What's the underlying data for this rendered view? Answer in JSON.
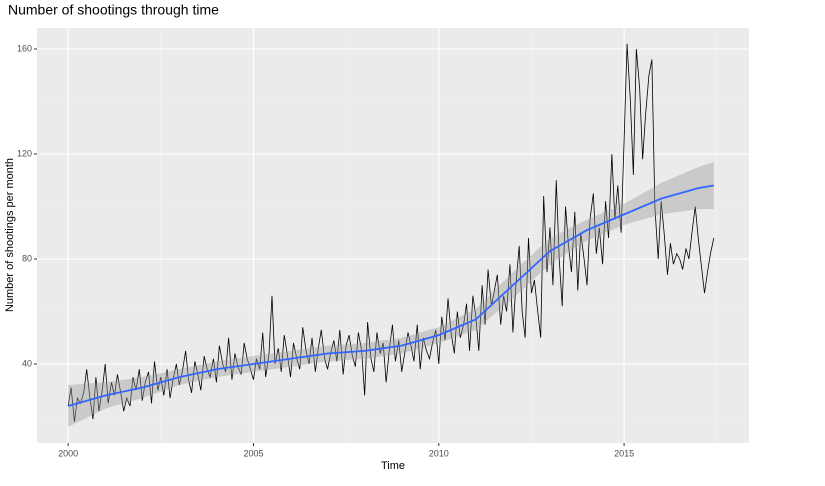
{
  "chart_data": {
    "type": "line",
    "title": "Number of shootings through time",
    "x_label": "Time",
    "y_label": "Number of shootings per month",
    "xlim": [
      1999.16,
      2018.37
    ],
    "ylim": [
      9.9,
      168
    ],
    "xticks": [
      2000,
      2005,
      2010,
      2015
    ],
    "yticks": [
      40,
      80,
      120,
      160
    ],
    "grid": true,
    "line_color": "#000000",
    "x": [
      2000.0,
      2000.08,
      2000.17,
      2000.25,
      2000.33,
      2000.42,
      2000.5,
      2000.58,
      2000.67,
      2000.75,
      2000.83,
      2000.92,
      2001.0,
      2001.08,
      2001.17,
      2001.25,
      2001.33,
      2001.42,
      2001.5,
      2001.58,
      2001.67,
      2001.75,
      2001.83,
      2001.92,
      2002.0,
      2002.08,
      2002.17,
      2002.25,
      2002.33,
      2002.42,
      2002.5,
      2002.58,
      2002.67,
      2002.75,
      2002.83,
      2002.92,
      2003.0,
      2003.08,
      2003.17,
      2003.25,
      2003.33,
      2003.42,
      2003.5,
      2003.58,
      2003.67,
      2003.75,
      2003.83,
      2003.92,
      2004.0,
      2004.08,
      2004.17,
      2004.25,
      2004.33,
      2004.42,
      2004.5,
      2004.58,
      2004.67,
      2004.75,
      2004.83,
      2004.92,
      2005.0,
      2005.08,
      2005.17,
      2005.25,
      2005.33,
      2005.42,
      2005.5,
      2005.58,
      2005.67,
      2005.75,
      2005.83,
      2005.92,
      2006.0,
      2006.08,
      2006.17,
      2006.25,
      2006.33,
      2006.42,
      2006.5,
      2006.58,
      2006.67,
      2006.75,
      2006.83,
      2006.92,
      2007.0,
      2007.08,
      2007.17,
      2007.25,
      2007.33,
      2007.42,
      2007.5,
      2007.58,
      2007.67,
      2007.75,
      2007.83,
      2007.92,
      2008.0,
      2008.08,
      2008.17,
      2008.25,
      2008.33,
      2008.42,
      2008.5,
      2008.58,
      2008.67,
      2008.75,
      2008.83,
      2008.92,
      2009.0,
      2009.08,
      2009.17,
      2009.25,
      2009.33,
      2009.42,
      2009.5,
      2009.58,
      2009.67,
      2009.75,
      2009.83,
      2009.92,
      2010.0,
      2010.08,
      2010.17,
      2010.25,
      2010.33,
      2010.42,
      2010.5,
      2010.58,
      2010.67,
      2010.75,
      2010.83,
      2010.92,
      2011.0,
      2011.08,
      2011.17,
      2011.25,
      2011.33,
      2011.42,
      2011.5,
      2011.58,
      2011.67,
      2011.75,
      2011.83,
      2011.92,
      2012.0,
      2012.08,
      2012.17,
      2012.25,
      2012.33,
      2012.42,
      2012.5,
      2012.58,
      2012.67,
      2012.75,
      2012.83,
      2012.92,
      2013.0,
      2013.08,
      2013.17,
      2013.25,
      2013.33,
      2013.42,
      2013.5,
      2013.58,
      2013.67,
      2013.75,
      2013.83,
      2013.92,
      2014.0,
      2014.08,
      2014.17,
      2014.25,
      2014.33,
      2014.42,
      2014.5,
      2014.58,
      2014.67,
      2014.75,
      2014.83,
      2014.92,
      2015.0,
      2015.08,
      2015.17,
      2015.25,
      2015.33,
      2015.42,
      2015.5,
      2015.58,
      2015.67,
      2015.75,
      2015.83,
      2015.92,
      2016.0,
      2016.08,
      2016.17,
      2016.25,
      2016.33,
      2016.42,
      2016.5,
      2016.58,
      2016.67,
      2016.75,
      2016.83,
      2016.92,
      2017.0,
      2017.08,
      2017.17,
      2017.25,
      2017.33,
      2017.42
    ],
    "values": [
      24,
      31,
      18,
      27,
      25,
      29,
      38,
      28,
      19,
      35,
      22,
      30,
      40,
      25,
      33,
      28,
      36,
      29,
      22,
      27,
      24,
      35,
      30,
      38,
      26,
      33,
      37,
      25,
      41,
      30,
      35,
      28,
      38,
      27,
      34,
      40,
      32,
      37,
      45,
      34,
      29,
      41,
      36,
      30,
      43,
      38,
      35,
      42,
      33,
      47,
      40,
      37,
      50,
      34,
      44,
      39,
      36,
      48,
      42,
      38,
      34,
      42,
      38,
      52,
      35,
      44,
      66,
      40,
      46,
      37,
      51,
      43,
      35,
      48,
      42,
      38,
      54,
      45,
      40,
      50,
      37,
      46,
      53,
      42,
      38,
      44,
      49,
      41,
      53,
      36,
      47,
      51,
      43,
      39,
      52,
      45,
      28,
      56,
      42,
      37,
      52,
      44,
      48,
      33,
      46,
      55,
      41,
      49,
      37,
      44,
      52,
      47,
      41,
      55,
      38,
      50,
      45,
      42,
      48,
      53,
      40,
      58,
      49,
      65,
      52,
      44,
      60,
      50,
      55,
      63,
      45,
      66,
      58,
      45,
      70,
      55,
      76,
      62,
      68,
      74,
      55,
      66,
      60,
      78,
      52,
      70,
      85,
      60,
      50,
      88,
      67,
      72,
      60,
      50,
      104,
      75,
      92,
      70,
      110,
      80,
      62,
      100,
      85,
      75,
      98,
      68,
      90,
      80,
      70,
      95,
      105,
      82,
      92,
      78,
      102,
      88,
      120,
      95,
      108,
      90,
      125,
      162,
      140,
      112,
      160,
      145,
      118,
      135,
      150,
      156,
      100,
      80,
      102,
      90,
      74,
      86,
      78,
      82,
      80,
      76,
      84,
      80,
      90,
      100,
      88,
      78,
      67,
      75,
      82,
      88
    ],
    "smooth": {
      "color": "#3366ff",
      "band_color": "#999999",
      "x": [
        2000,
        2001,
        2002,
        2003,
        2004,
        2005,
        2006,
        2007,
        2008,
        2009,
        2010,
        2011,
        2012,
        2013,
        2014,
        2015,
        2016,
        2017,
        2017.42
      ],
      "values": [
        24,
        28,
        31,
        35,
        38,
        40,
        42,
        44,
        45,
        47,
        51,
        57,
        70,
        83,
        91,
        97,
        103,
        107,
        108
      ],
      "lower": [
        16,
        23,
        27,
        32,
        35,
        37,
        39,
        41,
        42,
        44,
        48,
        53,
        65,
        78,
        87,
        93,
        97,
        99,
        99
      ],
      "upper": [
        32,
        33,
        35,
        38,
        41,
        43,
        45,
        47,
        48,
        50,
        54,
        61,
        75,
        88,
        95,
        101,
        109,
        115,
        117
      ]
    }
  }
}
